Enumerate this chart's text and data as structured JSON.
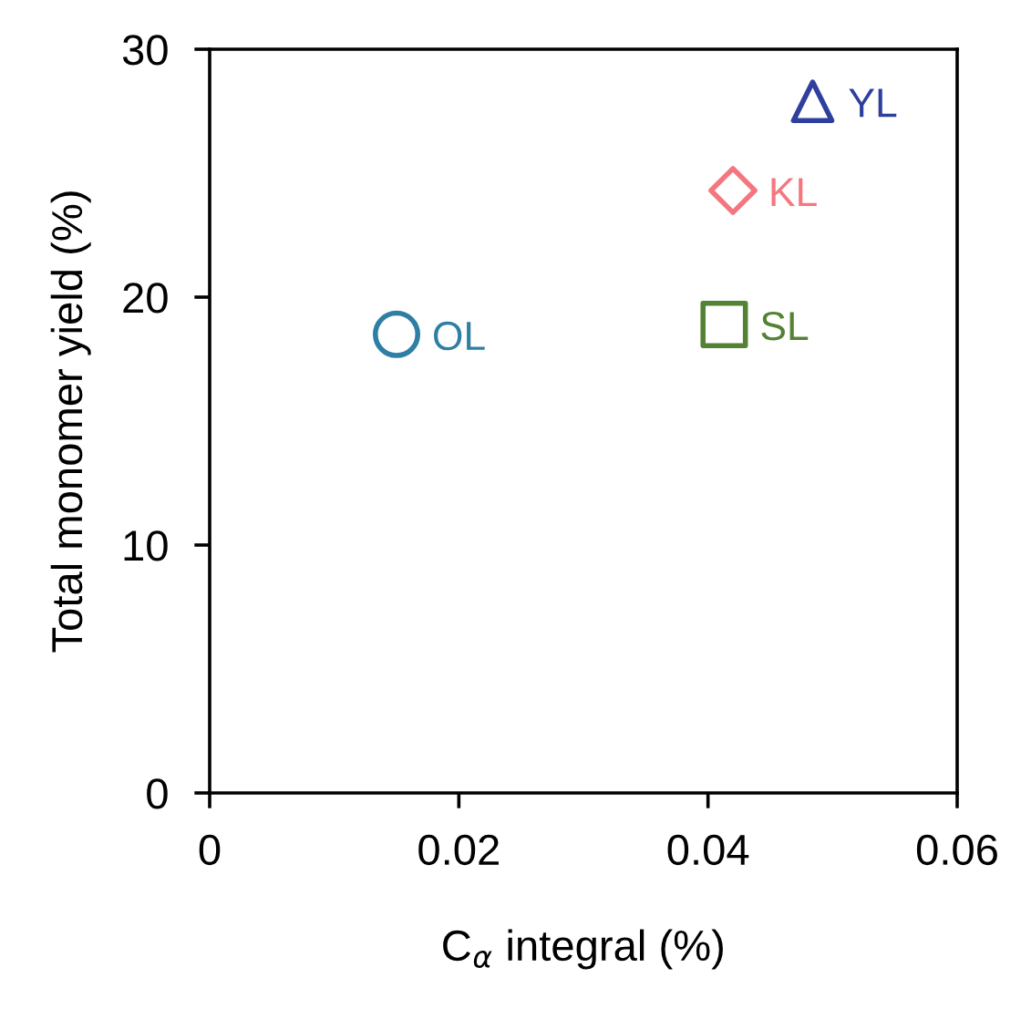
{
  "chart_data": {
    "type": "scatter",
    "xlabel": "C$_{α}$ integral (%)",
    "ylabel": "Total monomer yield (%)",
    "xlim": [
      0,
      0.06
    ],
    "xticks": [
      0,
      0.02,
      0.04,
      0.06
    ],
    "ylim": [
      0,
      30
    ],
    "yticks": [
      0,
      10,
      20,
      30
    ],
    "grid": false,
    "legend": false,
    "series": [
      {
        "name": "OL",
        "color": "#2e7fa3",
        "marker": "circle",
        "x": [
          0.015
        ],
        "values": [
          18.5
        ]
      },
      {
        "name": "SL",
        "color": "#548235",
        "marker": "square",
        "x": [
          0.0413
        ],
        "values": [
          18.9
        ]
      },
      {
        "name": "KL",
        "color": "#f4777f",
        "marker": "diamond",
        "x": [
          0.042
        ],
        "values": [
          24.3
        ]
      },
      {
        "name": "YL",
        "color": "#2f3f9e",
        "marker": "triangle",
        "x": [
          0.0484
        ],
        "values": [
          27.9
        ]
      }
    ]
  }
}
